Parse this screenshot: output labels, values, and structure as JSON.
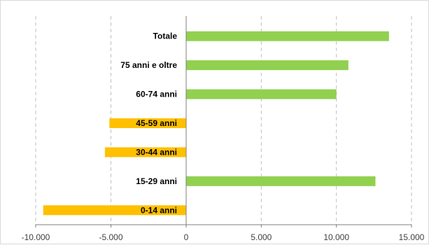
{
  "chart_data": {
    "type": "bar",
    "orientation": "horizontal",
    "title": "",
    "xlabel": "",
    "ylabel": "",
    "categories": [
      "Totale",
      "75 anni e oltre",
      "60-74 anni",
      "45-59 anni",
      "30-44 anni",
      "15-29 anni",
      "0-14 anni"
    ],
    "values": [
      13500,
      10800,
      10000,
      -5100,
      -5400,
      12600,
      -9500
    ],
    "xlim": [
      -10000,
      15000
    ],
    "xticks": [
      -10000,
      -5000,
      0,
      5000,
      10000,
      15000
    ],
    "xtick_labels": [
      "-10.000",
      "-5.000",
      "0",
      "5.000",
      "10.000",
      "15.000"
    ],
    "grid": "vertical-dashed",
    "legend": "none",
    "colors": {
      "positive": "#92d050",
      "negative": "#ffc000",
      "grid": "#bfbfbf",
      "axis": "#7f7f7f"
    }
  }
}
